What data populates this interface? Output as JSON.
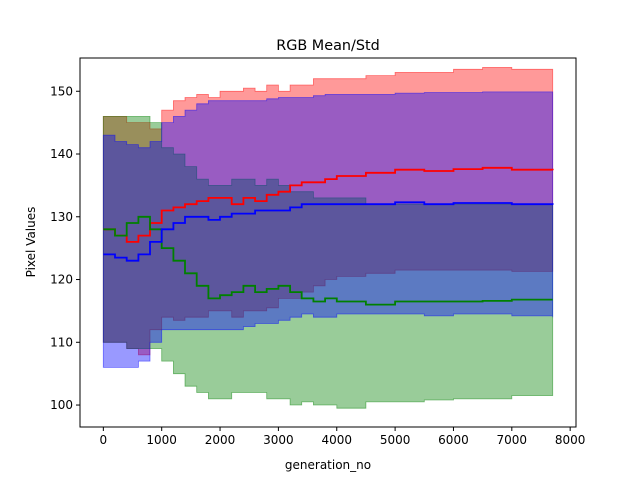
{
  "chart_data": {
    "type": "line",
    "title": "RGB Mean/Std",
    "xlabel": "generation_no",
    "ylabel": "Pixel Values",
    "xlim": [
      -400,
      8100
    ],
    "ylim": [
      96.5,
      155.3
    ],
    "xticks": [
      0,
      1000,
      2000,
      3000,
      4000,
      5000,
      6000,
      7000,
      8000
    ],
    "yticks": [
      100,
      110,
      120,
      130,
      140,
      150
    ],
    "xtick_labels": [
      "0",
      "1000",
      "2000",
      "3000",
      "4000",
      "5000",
      "6000",
      "7000",
      "8000"
    ],
    "ytick_labels": [
      "100",
      "110",
      "120",
      "130",
      "140",
      "150"
    ],
    "grid": false,
    "legend": "none",
    "step": true,
    "x": [
      0,
      200,
      400,
      600,
      800,
      1000,
      1200,
      1400,
      1600,
      1800,
      2000,
      2200,
      2400,
      2600,
      2800,
      3000,
      3200,
      3400,
      3600,
      3800,
      4000,
      4500,
      5000,
      5500,
      6000,
      6500,
      7000,
      7700
    ],
    "series": [
      {
        "color": "#ff0000",
        "mean": [
          128,
          127,
          126,
          127,
          129,
          131,
          131.5,
          132,
          132.5,
          133,
          133,
          132,
          133,
          132.5,
          133.5,
          134,
          135,
          135.5,
          135.5,
          136,
          136.5,
          137,
          137.5,
          137.3,
          137.6,
          137.8,
          137.5,
          137.4
        ],
        "upper": [
          146,
          146,
          145,
          145,
          144,
          147,
          148.5,
          149,
          149.5,
          149,
          150,
          150,
          150.5,
          150,
          151,
          150,
          151,
          151,
          152,
          152,
          152,
          152.5,
          153,
          153,
          153.5,
          153.8,
          153.5,
          153.3
        ],
        "lower": [
          110,
          110,
          109,
          108,
          112,
          114,
          113.5,
          114,
          114,
          115,
          115,
          114,
          115,
          115,
          115.5,
          117,
          117,
          118,
          119,
          120,
          120.5,
          121,
          121.5,
          121.5,
          121.5,
          121.5,
          121.3,
          121.3
        ]
      },
      {
        "color": "#008000",
        "mean": [
          128,
          127,
          129,
          130,
          128,
          125,
          123,
          121,
          119,
          117,
          117.5,
          118,
          119,
          118,
          118.5,
          119,
          118,
          117,
          116.5,
          117,
          116.5,
          116,
          116.5,
          116.5,
          116.5,
          116.6,
          116.8,
          116.8
        ],
        "upper": [
          146,
          146,
          146,
          146,
          145,
          141,
          140,
          138,
          136,
          135,
          135,
          136,
          136,
          135,
          136,
          135,
          134,
          134,
          133,
          133,
          133,
          132,
          132,
          132,
          132,
          132,
          132,
          132
        ],
        "lower": [
          110,
          110,
          109,
          109,
          109,
          107,
          105,
          103,
          102,
          101,
          101,
          102,
          102,
          102,
          101,
          101,
          100,
          100.5,
          100,
          100,
          99.5,
          100.5,
          100.5,
          100.8,
          101,
          101,
          101.5,
          101.6
        ]
      },
      {
        "color": "#0000ff",
        "mean": [
          124,
          123.5,
          123,
          124,
          126,
          128,
          129,
          130,
          130,
          129.5,
          130,
          130.5,
          130.5,
          131,
          131,
          131,
          131.5,
          132,
          132,
          132,
          132,
          132,
          132.3,
          132,
          132.2,
          132.2,
          132,
          131.9
        ],
        "upper": [
          143,
          142,
          141.5,
          141,
          142,
          145,
          146,
          147,
          148,
          148.5,
          148.5,
          148.5,
          148.5,
          148.5,
          148.8,
          149,
          149,
          149,
          149.3,
          149.5,
          149.5,
          149.5,
          149.7,
          149.8,
          149.8,
          149.9,
          149.9,
          149.8
        ],
        "lower": [
          106,
          106,
          106,
          107,
          110,
          112,
          112,
          112,
          112,
          112,
          112,
          112,
          112.5,
          113,
          113,
          113.5,
          114,
          114.5,
          114,
          114,
          114.5,
          114.5,
          114.5,
          114.2,
          114.5,
          114.5,
          114.2,
          114
        ]
      }
    ]
  }
}
